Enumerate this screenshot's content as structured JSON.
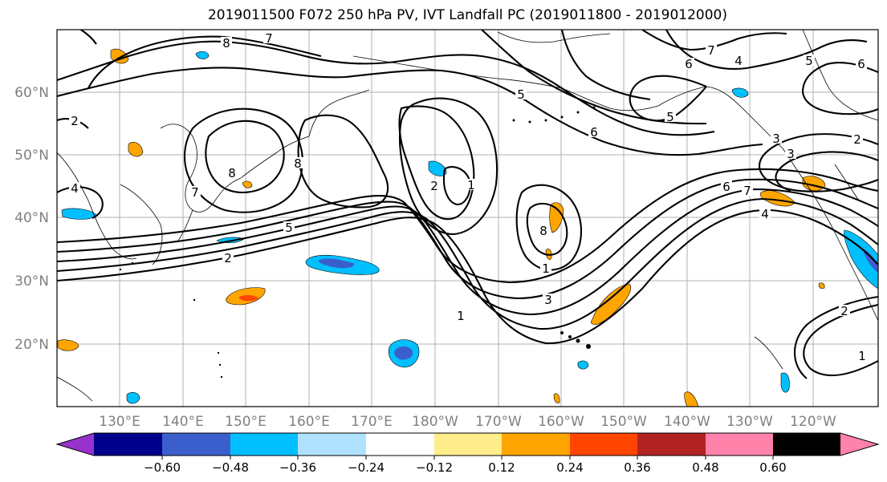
{
  "title": "2019011500 F072 250 hPa PV, IVT Landfall PC (2019011800 - 2019012000)",
  "lat_labels": [
    "60°N",
    "50°N",
    "40°N",
    "30°N",
    "20°N"
  ],
  "lon_labels": [
    "130°E",
    "140°E",
    "150°E",
    "160°E",
    "170°E",
    "180°W",
    "170°W",
    "160°W",
    "150°W",
    "140°W",
    "130°W",
    "120°W"
  ],
  "colorbar": {
    "colors": [
      "#9932cc",
      "#00008b",
      "#3a5fcd",
      "#00bfff",
      "#b0e2ff",
      "#ffffff",
      "#ffec8b",
      "#ffa500",
      "#ff4500",
      "#b22222",
      "#ff82ab"
    ],
    "ticks": [
      "−0.60",
      "−0.48",
      "−0.36",
      "−0.24",
      "−0.12",
      "0.12",
      "0.24",
      "0.36",
      "0.48",
      "0.60"
    ]
  },
  "contour_labels": [
    "8",
    "7",
    "7",
    "6",
    "6",
    "5",
    "5",
    "8",
    "8",
    "7",
    "4",
    "5",
    "2",
    "2",
    "1",
    "2",
    "1",
    "8",
    "3",
    "1",
    "6",
    "3",
    "3",
    "6",
    "7",
    "4",
    "2",
    "2",
    "1",
    "5",
    "4"
  ]
}
